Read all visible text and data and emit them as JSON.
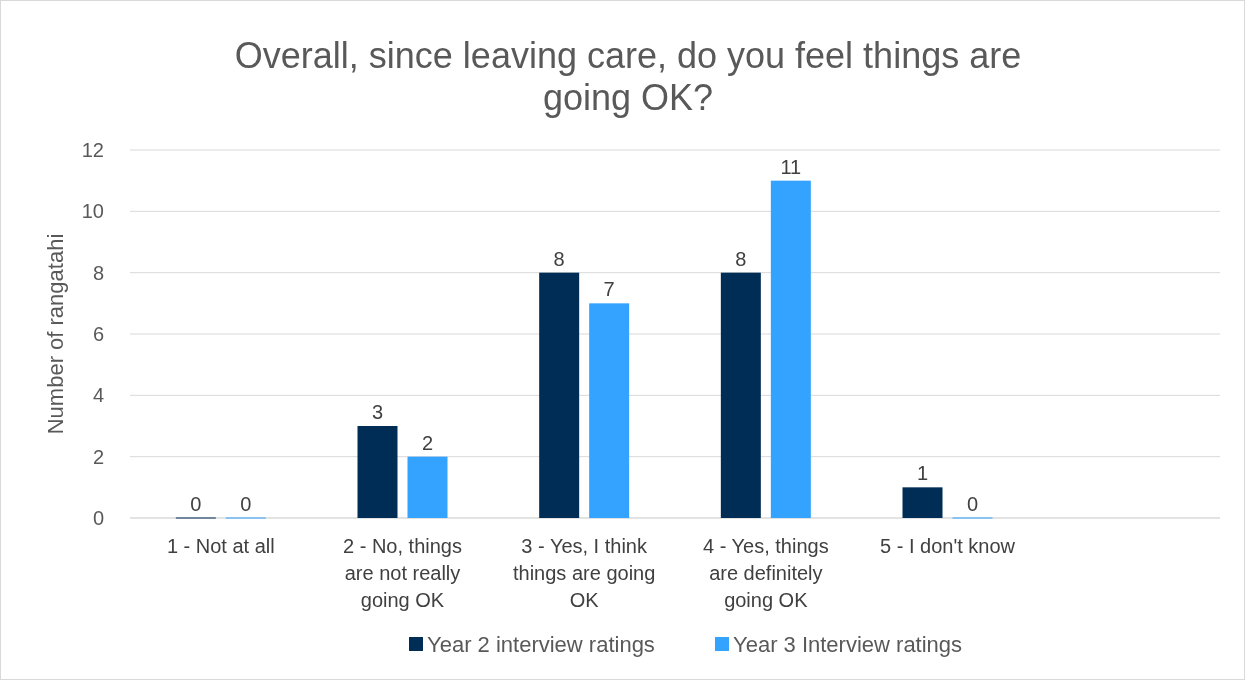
{
  "chart_data": {
    "type": "bar",
    "title": "Overall, since leaving care, do you feel things are going OK?",
    "ylabel": "Number of rangatahi",
    "categories": [
      "1 - Not at all",
      "2 - No, things are not really going OK",
      "3 - Yes, I think things are going OK",
      "4 - Yes, things are definitely going OK",
      "5 - I don't know",
      null
    ],
    "series": [
      {
        "name": "Year 2 interview ratings",
        "color": "#002d56",
        "values": [
          0,
          3,
          8,
          8,
          1,
          null
        ]
      },
      {
        "name": "Year 3 Interview ratings",
        "color": "#33a3ff",
        "values": [
          0,
          2,
          7,
          11,
          0,
          null
        ]
      }
    ],
    "ylim": [
      0,
      12
    ],
    "yticks": [
      0,
      2,
      4,
      6,
      8,
      10,
      12
    ],
    "grid": "y",
    "legend": "bottom",
    "data_labels": true
  }
}
